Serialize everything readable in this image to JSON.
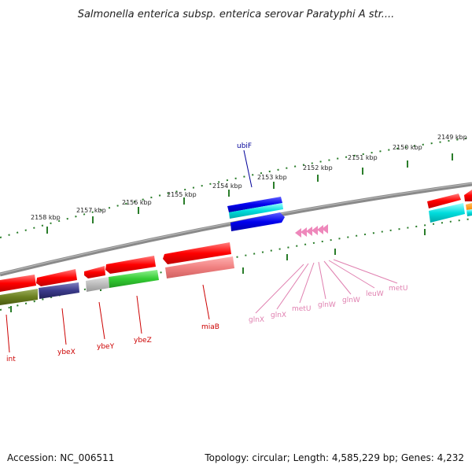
{
  "title": "Salmonella enterica subsp. enterica serovar Paratyphi A str....",
  "footer": {
    "accession": "Accession: NC_006511",
    "summary": "Topology: circular; Length: 4,585,229 bp; Genes: 4,232"
  },
  "colors": {
    "backbone": "#8a8a8a",
    "tick": "#2a7d2a",
    "gene_red": "#ff0000",
    "gene_blue": "#0000ee",
    "trna_pink": "#ee88bb",
    "label_red": "#cc0000",
    "label_blue": "#000099",
    "label_pink": "#e080b0"
  },
  "kbp_ticks": [
    {
      "label": "2158 kbp"
    },
    {
      "label": "2157 kbp"
    },
    {
      "label": "2156 kbp"
    },
    {
      "label": "2155 kbp"
    },
    {
      "label": "2154 kbp"
    },
    {
      "label": "2153 kbp"
    },
    {
      "label": "2152 kbp"
    },
    {
      "label": "2151 kbp"
    },
    {
      "label": "2150 kbp"
    },
    {
      "label": "2149 kbp"
    }
  ],
  "gene_labels": [
    {
      "name": "int"
    },
    {
      "name": "ybeX"
    },
    {
      "name": "ybeY"
    },
    {
      "name": "ybeZ"
    },
    {
      "name": "miaB"
    },
    {
      "name": "ubiF"
    },
    {
      "name": "glnX"
    },
    {
      "name": "glnX"
    },
    {
      "name": "metU"
    },
    {
      "name": "glnW"
    },
    {
      "name": "glnW"
    },
    {
      "name": "leuW"
    },
    {
      "name": "metU"
    }
  ]
}
